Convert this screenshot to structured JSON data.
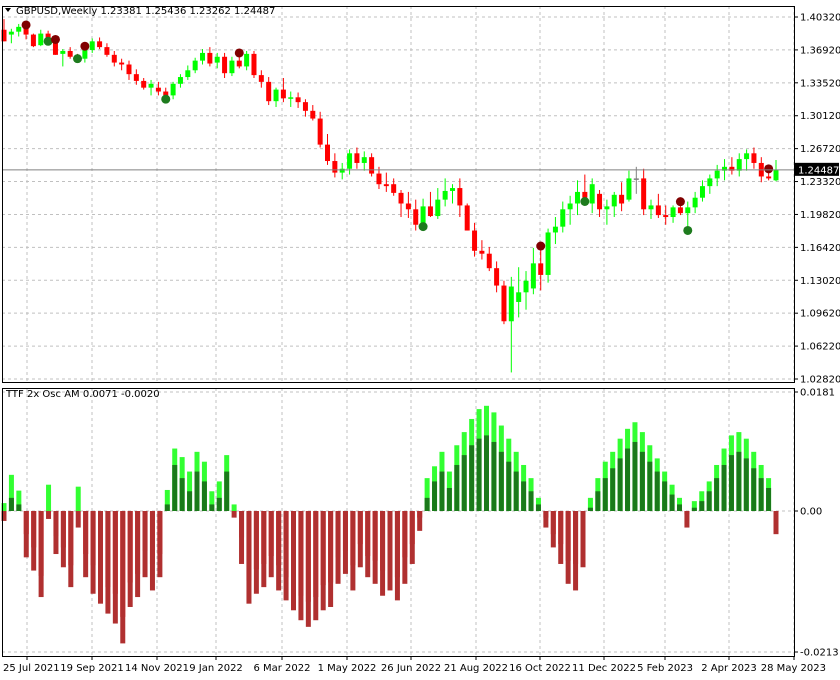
{
  "header": {
    "symbol_line": "GBPUSD,Weekly  1.23381 1.25436 1.23262 1.24487",
    "indicator_line": "TTF 2x Osc AM 0.0071 -0.0020"
  },
  "price_axis": {
    "ticks": [
      "1.40320",
      "1.36920",
      "1.33520",
      "1.30120",
      "1.26720",
      "1.23320",
      "1.19820",
      "1.16420",
      "1.13020",
      "1.09620",
      "1.06220",
      "1.02820"
    ],
    "current_price_label": "1.24487"
  },
  "osc_axis": {
    "ticks": [
      "0.0181",
      "0.00",
      "-0.0213"
    ]
  },
  "time_axis": {
    "labels": [
      "25 Jul 2021",
      "19 Sep 2021",
      "14 Nov 2021",
      "9 Jan 2022",
      "6 Mar 2022",
      "1 May 2022",
      "26 Jun 2022",
      "21 Aug 2022",
      "16 Oct 2022",
      "11 Dec 2022",
      "5 Feb 2023",
      "2 Apr 2023",
      "28 May 2023"
    ]
  },
  "colors": {
    "background": "#ffffff",
    "grid": "#c0c0c0",
    "bull": "#00ff00",
    "bear": "#ff0000",
    "neutral": "#808080",
    "dark_bull": "#1e7b1e",
    "dark_bear": "#800000",
    "osc_bright_pos": "#32ff32",
    "osc_dark_pos": "#1a7a1a",
    "osc_bright_neg": "#ff1a1a",
    "osc_dark_neg": "#b03030"
  },
  "chart_data": [
    {
      "type": "candlestick",
      "title": "GBPUSD,Weekly",
      "ylim": [
        1.0282,
        1.4032
      ],
      "last_ohlc": {
        "open": 1.23381,
        "high": 1.25436,
        "low": 1.23262,
        "close": 1.24487
      },
      "candles": [
        {
          "o": 1.39,
          "h": 1.401,
          "l": 1.378,
          "c": 1.378
        },
        {
          "o": 1.385,
          "h": 1.391,
          "l": 1.376,
          "c": 1.388
        },
        {
          "o": 1.388,
          "h": 1.396,
          "l": 1.383,
          "c": 1.393
        },
        {
          "o": 1.393,
          "h": 1.397,
          "l": 1.38,
          "c": 1.385
        },
        {
          "o": 1.385,
          "h": 1.386,
          "l": 1.372,
          "c": 1.373
        },
        {
          "o": 1.374,
          "h": 1.39,
          "l": 1.373,
          "c": 1.386
        },
        {
          "o": 1.386,
          "h": 1.389,
          "l": 1.376,
          "c": 1.378
        },
        {
          "o": 1.378,
          "h": 1.382,
          "l": 1.364,
          "c": 1.364
        },
        {
          "o": 1.365,
          "h": 1.37,
          "l": 1.352,
          "c": 1.368
        },
        {
          "o": 1.368,
          "h": 1.372,
          "l": 1.36,
          "c": 1.362
        },
        {
          "o": 1.362,
          "h": 1.365,
          "l": 1.358,
          "c": 1.359
        },
        {
          "o": 1.36,
          "h": 1.375,
          "l": 1.356,
          "c": 1.369
        },
        {
          "o": 1.369,
          "h": 1.381,
          "l": 1.366,
          "c": 1.378
        },
        {
          "o": 1.378,
          "h": 1.382,
          "l": 1.37,
          "c": 1.372
        },
        {
          "o": 1.372,
          "h": 1.376,
          "l": 1.362,
          "c": 1.364
        },
        {
          "o": 1.364,
          "h": 1.368,
          "l": 1.352,
          "c": 1.356
        },
        {
          "o": 1.356,
          "h": 1.36,
          "l": 1.348,
          "c": 1.354
        },
        {
          "o": 1.354,
          "h": 1.358,
          "l": 1.338,
          "c": 1.344
        },
        {
          "o": 1.344,
          "h": 1.349,
          "l": 1.333,
          "c": 1.337
        },
        {
          "o": 1.337,
          "h": 1.34,
          "l": 1.328,
          "c": 1.33
        },
        {
          "o": 1.33,
          "h": 1.338,
          "l": 1.322,
          "c": 1.334
        },
        {
          "o": 1.33,
          "h": 1.336,
          "l": 1.322,
          "c": 1.326
        },
        {
          "o": 1.326,
          "h": 1.33,
          "l": 1.316,
          "c": 1.322
        },
        {
          "o": 1.322,
          "h": 1.336,
          "l": 1.318,
          "c": 1.334
        },
        {
          "o": 1.334,
          "h": 1.344,
          "l": 1.33,
          "c": 1.341
        },
        {
          "o": 1.341,
          "h": 1.353,
          "l": 1.338,
          "c": 1.348
        },
        {
          "o": 1.348,
          "h": 1.361,
          "l": 1.345,
          "c": 1.358
        },
        {
          "o": 1.358,
          "h": 1.37,
          "l": 1.354,
          "c": 1.366
        },
        {
          "o": 1.366,
          "h": 1.372,
          "l": 1.352,
          "c": 1.355
        },
        {
          "o": 1.356,
          "h": 1.366,
          "l": 1.35,
          "c": 1.362
        },
        {
          "o": 1.362,
          "h": 1.366,
          "l": 1.34,
          "c": 1.345
        },
        {
          "o": 1.345,
          "h": 1.362,
          "l": 1.342,
          "c": 1.358
        },
        {
          "o": 1.358,
          "h": 1.368,
          "l": 1.35,
          "c": 1.352
        },
        {
          "o": 1.352,
          "h": 1.368,
          "l": 1.348,
          "c": 1.365
        },
        {
          "o": 1.365,
          "h": 1.368,
          "l": 1.34,
          "c": 1.343
        },
        {
          "o": 1.343,
          "h": 1.348,
          "l": 1.33,
          "c": 1.336
        },
        {
          "o": 1.336,
          "h": 1.341,
          "l": 1.312,
          "c": 1.316
        },
        {
          "o": 1.316,
          "h": 1.33,
          "l": 1.31,
          "c": 1.328
        },
        {
          "o": 1.328,
          "h": 1.34,
          "l": 1.315,
          "c": 1.319
        },
        {
          "o": 1.319,
          "h": 1.326,
          "l": 1.31,
          "c": 1.32
        },
        {
          "o": 1.32,
          "h": 1.325,
          "l": 1.309,
          "c": 1.315
        },
        {
          "o": 1.315,
          "h": 1.318,
          "l": 1.3,
          "c": 1.306
        },
        {
          "o": 1.306,
          "h": 1.312,
          "l": 1.296,
          "c": 1.298
        },
        {
          "o": 1.298,
          "h": 1.305,
          "l": 1.268,
          "c": 1.271
        },
        {
          "o": 1.271,
          "h": 1.282,
          "l": 1.25,
          "c": 1.254
        },
        {
          "o": 1.254,
          "h": 1.262,
          "l": 1.237,
          "c": 1.242
        },
        {
          "o": 1.242,
          "h": 1.252,
          "l": 1.235,
          "c": 1.246
        },
        {
          "o": 1.246,
          "h": 1.266,
          "l": 1.24,
          "c": 1.262
        },
        {
          "o": 1.262,
          "h": 1.268,
          "l": 1.246,
          "c": 1.252
        },
        {
          "o": 1.252,
          "h": 1.264,
          "l": 1.244,
          "c": 1.258
        },
        {
          "o": 1.258,
          "h": 1.262,
          "l": 1.238,
          "c": 1.241
        },
        {
          "o": 1.241,
          "h": 1.248,
          "l": 1.225,
          "c": 1.23
        },
        {
          "o": 1.23,
          "h": 1.242,
          "l": 1.222,
          "c": 1.228
        },
        {
          "o": 1.23,
          "h": 1.236,
          "l": 1.218,
          "c": 1.221
        },
        {
          "o": 1.221,
          "h": 1.224,
          "l": 1.196,
          "c": 1.21
        },
        {
          "o": 1.21,
          "h": 1.222,
          "l": 1.195,
          "c": 1.204
        },
        {
          "o": 1.204,
          "h": 1.214,
          "l": 1.182,
          "c": 1.188
        },
        {
          "o": 1.188,
          "h": 1.215,
          "l": 1.184,
          "c": 1.207
        },
        {
          "o": 1.207,
          "h": 1.222,
          "l": 1.196,
          "c": 1.197
        },
        {
          "o": 1.197,
          "h": 1.226,
          "l": 1.194,
          "c": 1.214
        },
        {
          "o": 1.214,
          "h": 1.236,
          "l": 1.207,
          "c": 1.223
        },
        {
          "o": 1.223,
          "h": 1.23,
          "l": 1.21,
          "c": 1.226
        },
        {
          "o": 1.226,
          "h": 1.236,
          "l": 1.196,
          "c": 1.208
        },
        {
          "o": 1.208,
          "h": 1.21,
          "l": 1.182,
          "c": 1.182
        },
        {
          "o": 1.182,
          "h": 1.19,
          "l": 1.155,
          "c": 1.161
        },
        {
          "o": 1.161,
          "h": 1.172,
          "l": 1.152,
          "c": 1.158
        },
        {
          "o": 1.158,
          "h": 1.165,
          "l": 1.14,
          "c": 1.143
        },
        {
          "o": 1.143,
          "h": 1.15,
          "l": 1.118,
          "c": 1.125
        },
        {
          "o": 1.125,
          "h": 1.13,
          "l": 1.085,
          "c": 1.088
        },
        {
          "o": 1.088,
          "h": 1.134,
          "l": 1.035,
          "c": 1.124
        },
        {
          "o": 1.108,
          "h": 1.144,
          "l": 1.092,
          "c": 1.118
        },
        {
          "o": 1.118,
          "h": 1.14,
          "l": 1.1,
          "c": 1.13
        },
        {
          "o": 1.122,
          "h": 1.164,
          "l": 1.116,
          "c": 1.148
        },
        {
          "o": 1.148,
          "h": 1.168,
          "l": 1.12,
          "c": 1.136
        },
        {
          "o": 1.136,
          "h": 1.184,
          "l": 1.128,
          "c": 1.18
        },
        {
          "o": 1.18,
          "h": 1.196,
          "l": 1.168,
          "c": 1.186
        },
        {
          "o": 1.186,
          "h": 1.212,
          "l": 1.18,
          "c": 1.204
        },
        {
          "o": 1.204,
          "h": 1.218,
          "l": 1.188,
          "c": 1.21
        },
        {
          "o": 1.21,
          "h": 1.234,
          "l": 1.198,
          "c": 1.222
        },
        {
          "o": 1.222,
          "h": 1.24,
          "l": 1.21,
          "c": 1.216
        },
        {
          "o": 1.21,
          "h": 1.236,
          "l": 1.2,
          "c": 1.23
        },
        {
          "o": 1.22,
          "h": 1.224,
          "l": 1.196,
          "c": 1.204
        },
        {
          "o": 1.204,
          "h": 1.214,
          "l": 1.188,
          "c": 1.207
        },
        {
          "o": 1.207,
          "h": 1.222,
          "l": 1.196,
          "c": 1.219
        },
        {
          "o": 1.219,
          "h": 1.232,
          "l": 1.202,
          "c": 1.21
        },
        {
          "o": 1.214,
          "h": 1.244,
          "l": 1.212,
          "c": 1.236
        },
        {
          "o": 1.236,
          "h": 1.248,
          "l": 1.22,
          "c": 1.236
        },
        {
          "o": 1.236,
          "h": 1.246,
          "l": 1.198,
          "c": 1.204
        },
        {
          "o": 1.204,
          "h": 1.214,
          "l": 1.194,
          "c": 1.208
        },
        {
          "o": 1.208,
          "h": 1.22,
          "l": 1.195,
          "c": 1.198
        },
        {
          "o": 1.198,
          "h": 1.208,
          "l": 1.188,
          "c": 1.196
        },
        {
          "o": 1.196,
          "h": 1.208,
          "l": 1.19,
          "c": 1.206
        },
        {
          "o": 1.206,
          "h": 1.214,
          "l": 1.198,
          "c": 1.2
        },
        {
          "o": 1.2,
          "h": 1.212,
          "l": 1.18,
          "c": 1.206
        },
        {
          "o": 1.206,
          "h": 1.222,
          "l": 1.2,
          "c": 1.216
        },
        {
          "o": 1.216,
          "h": 1.234,
          "l": 1.212,
          "c": 1.228
        },
        {
          "o": 1.228,
          "h": 1.24,
          "l": 1.22,
          "c": 1.236
        },
        {
          "o": 1.236,
          "h": 1.25,
          "l": 1.228,
          "c": 1.244
        },
        {
          "o": 1.244,
          "h": 1.256,
          "l": 1.234,
          "c": 1.248
        },
        {
          "o": 1.248,
          "h": 1.258,
          "l": 1.24,
          "c": 1.244
        },
        {
          "o": 1.244,
          "h": 1.262,
          "l": 1.238,
          "c": 1.256
        },
        {
          "o": 1.256,
          "h": 1.266,
          "l": 1.244,
          "c": 1.262
        },
        {
          "o": 1.262,
          "h": 1.268,
          "l": 1.246,
          "c": 1.252
        },
        {
          "o": 1.252,
          "h": 1.258,
          "l": 1.232,
          "c": 1.238
        },
        {
          "o": 1.238,
          "h": 1.248,
          "l": 1.234,
          "c": 1.236
        },
        {
          "o": 1.234,
          "h": 1.255,
          "l": 1.233,
          "c": 1.245
        }
      ],
      "current_price": 1.24487
    },
    {
      "type": "bar",
      "title": "TTF 2x Osc AM",
      "header_values": [
        0.0071,
        -0.002
      ],
      "ylim": [
        -0.0213,
        0.0181
      ],
      "series": [
        {
          "values": [
            0.0012,
            0.0055,
            0.0031,
            -0.0035,
            -0.0055,
            -0.0098,
            0.004,
            -0.0038,
            -0.0055,
            -0.0082,
            0.0037,
            -0.0065,
            -0.0082,
            -0.01,
            -0.0115,
            -0.0125,
            -0.016,
            -0.0108,
            -0.0095,
            -0.006,
            -0.008,
            -0.0065,
            0.0032,
            0.0095,
            0.0082,
            0.006,
            0.009,
            0.0075,
            0.003,
            0.0045,
            0.0085,
            0.001,
            -0.004,
            -0.0105,
            -0.0088,
            -0.008,
            -0.0068,
            -0.0082,
            -0.01,
            -0.0115,
            -0.0128,
            -0.0137,
            -0.013,
            -0.0112,
            -0.0108,
            -0.007,
            -0.006,
            -0.0082,
            -0.005,
            -0.0068,
            -0.0075,
            -0.009,
            -0.0085,
            -0.01,
            -0.007,
            -0.005,
            -0.001,
            0.005,
            0.0068,
            0.009,
            0.006,
            0.01,
            0.012,
            0.014,
            0.0155,
            0.016,
            0.015,
            0.013,
            0.011,
            0.009,
            0.007,
            0.005,
            0.002,
            -0.001,
            -0.0035,
            -0.005,
            -0.0075,
            -0.008,
            -0.005,
            0.002,
            0.005,
            0.0075,
            0.009,
            0.011,
            0.0125,
            0.0135,
            0.012,
            0.01,
            0.008,
            0.006,
            0.004,
            0.002,
            -0.0005,
            0.0015,
            0.003,
            0.0045,
            0.007,
            0.0095,
            0.0115,
            0.012,
            0.011,
            0.009,
            0.007,
            0.005,
            -0.002
          ]
        },
        {
          "values": [
            -0.0015,
            0.002,
            0.001,
            -0.007,
            -0.009,
            -0.013,
            -0.0012,
            -0.0065,
            -0.0085,
            -0.0115,
            -0.0025,
            -0.01,
            -0.0125,
            -0.014,
            -0.0155,
            -0.017,
            -0.02,
            -0.0145,
            -0.013,
            -0.01,
            -0.012,
            -0.01,
            0.001,
            0.007,
            0.005,
            0.003,
            0.006,
            0.0045,
            0.001,
            0.002,
            0.006,
            -0.001,
            -0.008,
            -0.014,
            -0.0125,
            -0.0115,
            -0.01,
            -0.012,
            -0.0135,
            -0.015,
            -0.0165,
            -0.0175,
            -0.0165,
            -0.015,
            -0.0145,
            -0.011,
            -0.0095,
            -0.012,
            -0.0085,
            -0.01,
            -0.011,
            -0.0128,
            -0.012,
            -0.0135,
            -0.011,
            -0.008,
            -0.003,
            0.002,
            0.0045,
            0.006,
            0.0035,
            0.007,
            0.0085,
            0.01,
            0.011,
            0.0115,
            0.0105,
            0.009,
            0.0075,
            0.006,
            0.0045,
            0.003,
            0.001,
            -0.0025,
            -0.0055,
            -0.008,
            -0.011,
            -0.012,
            -0.0085,
            0.0005,
            0.003,
            0.005,
            0.0065,
            0.008,
            0.0095,
            0.0105,
            0.009,
            0.0075,
            0.006,
            0.0045,
            0.0025,
            0.001,
            -0.0025,
            0.0005,
            0.0015,
            0.003,
            0.005,
            0.007,
            0.0085,
            0.009,
            0.008,
            0.0065,
            0.005,
            0.0035,
            -0.0035
          ]
        }
      ]
    }
  ]
}
